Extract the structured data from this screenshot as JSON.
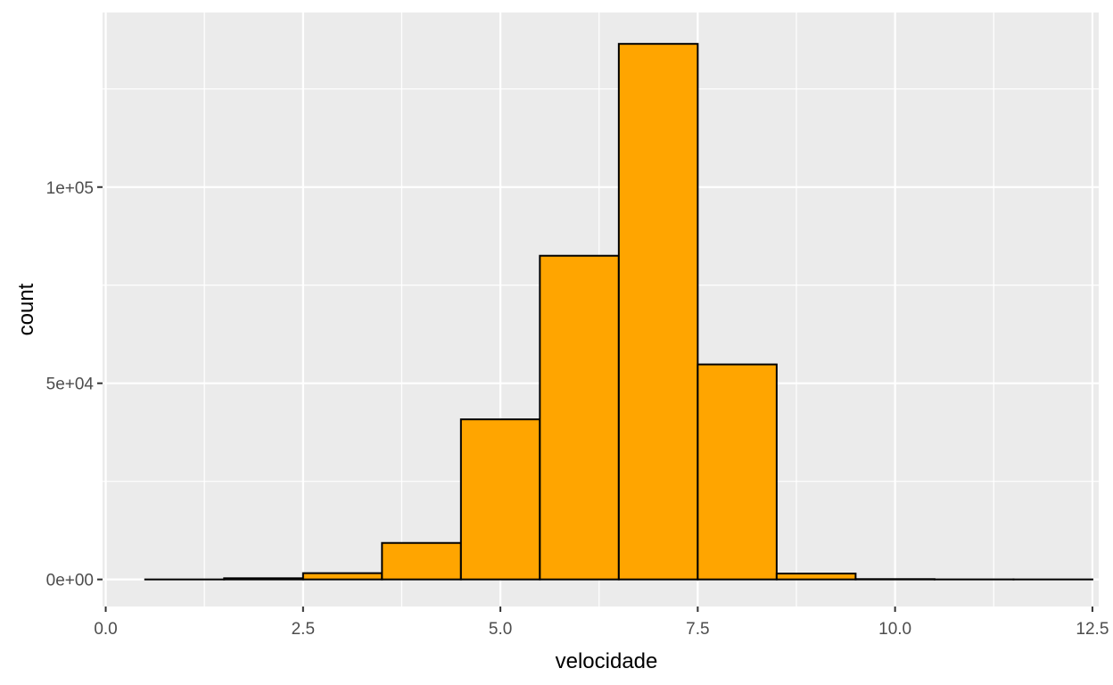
{
  "chart_data": {
    "type": "bar",
    "subtype": "histogram",
    "title": "",
    "xlabel": "velocidade",
    "ylabel": "count",
    "bin_width": 1,
    "bins": [
      {
        "center": 1,
        "count": 0
      },
      {
        "center": 2,
        "count": 300
      },
      {
        "center": 3,
        "count": 1600
      },
      {
        "center": 4,
        "count": 9300
      },
      {
        "center": 5,
        "count": 40800
      },
      {
        "center": 6,
        "count": 82500
      },
      {
        "center": 7,
        "count": 136500
      },
      {
        "center": 8,
        "count": 54800
      },
      {
        "center": 9,
        "count": 1500
      },
      {
        "center": 10,
        "count": 80
      },
      {
        "center": 11,
        "count": 10
      },
      {
        "center": 12,
        "count": 5
      }
    ],
    "xlim": [
      -0.04,
      12.58
    ],
    "ylim": [
      -6900,
      144500
    ],
    "x_ticks": [
      0,
      2.5,
      5,
      7.5,
      10,
      12.5
    ],
    "x_tick_labels": [
      "0.0",
      "2.5",
      "5.0",
      "7.5",
      "10.0",
      "12.5"
    ],
    "y_ticks": [
      0,
      50000,
      100000
    ],
    "y_tick_labels": [
      "0e+00",
      "5e+04",
      "1e+05"
    ],
    "fill_color": "#FFA500",
    "edge_color": "#000000",
    "panel_background": "#EBEBEB",
    "grid_color": "#FFFFFF",
    "grid": true,
    "legend": "none"
  }
}
